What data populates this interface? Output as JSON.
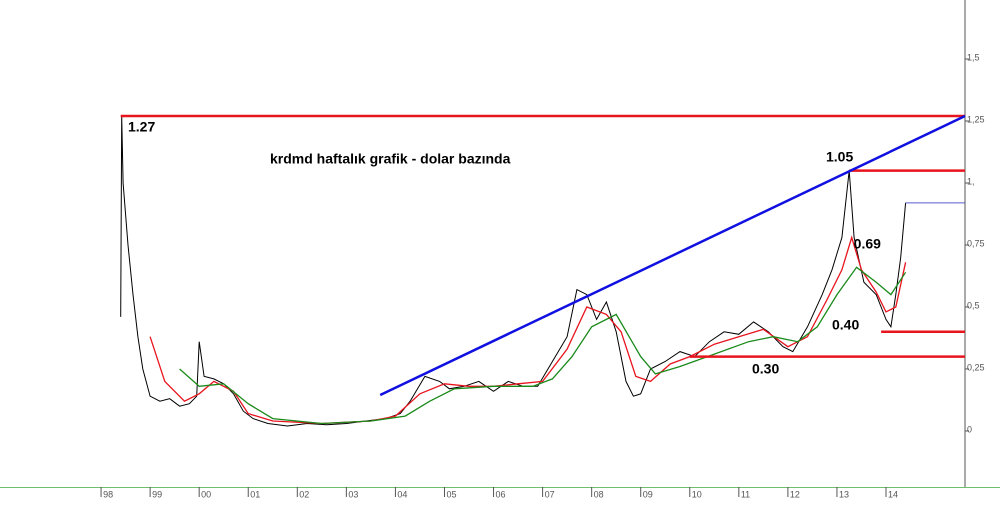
{
  "chart_data": {
    "type": "line",
    "title": "krdmd haftalık grafik  - dolar bazında",
    "xlim": [
      95.94,
      115.61
    ],
    "ylim": [
      -0.226,
      1.738
    ],
    "xticks": [
      98,
      99,
      {
        "value": 100,
        "label": "00"
      },
      {
        "value": 101,
        "label": "01"
      },
      {
        "value": 102,
        "label": "02"
      },
      {
        "value": 103,
        "label": "03"
      },
      {
        "value": 104,
        "label": "04"
      },
      {
        "value": 105,
        "label": "05"
      },
      {
        "value": 106,
        "label": "06"
      },
      {
        "value": 107,
        "label": "07"
      },
      {
        "value": 108,
        "label": "08"
      },
      {
        "value": 109,
        "label": "09"
      },
      {
        "value": 110,
        "label": "10"
      },
      {
        "value": 111,
        "label": "11"
      },
      {
        "value": 112,
        "label": "12"
      },
      {
        "value": 113,
        "label": "13"
      },
      {
        "value": 114,
        "label": "14"
      }
    ],
    "yticks": [
      0,
      {
        "value": 0.25,
        "label": "0,25"
      },
      {
        "value": 0.5,
        "label": "0,5"
      },
      {
        "value": 0.75,
        "label": "0,75"
      },
      {
        "value": 1,
        "label": "1,"
      },
      {
        "value": 1.25,
        "label": "1,25"
      },
      {
        "value": 1.5,
        "label": "1,5"
      }
    ],
    "series": [
      {
        "color": "#000000",
        "x": [
          98.4,
          98.42,
          98.45,
          98.55,
          98.65,
          98.75,
          98.85,
          99.0,
          99.2,
          99.4,
          99.6,
          99.8,
          99.95,
          100.0,
          100.1,
          100.3,
          100.5,
          100.7,
          100.9,
          101.1,
          101.4,
          101.8,
          102.2,
          102.6,
          103.0,
          103.4,
          103.8,
          104.1,
          104.3,
          104.6,
          104.9,
          105.1,
          105.4,
          105.7,
          106.0,
          106.3,
          106.6,
          106.9,
          107.2,
          107.5,
          107.7,
          107.9,
          108.1,
          108.3,
          108.5,
          108.7,
          108.85,
          109.0,
          109.2,
          109.5,
          109.8,
          110.1,
          110.4,
          110.7,
          111.0,
          111.3,
          111.6,
          111.9,
          112.1,
          112.4,
          112.7,
          112.9,
          113.1,
          113.25,
          113.35,
          113.55,
          113.8,
          114.0,
          114.1,
          114.2,
          114.3,
          114.4
        ],
        "values": [
          0.46,
          1.27,
          1.0,
          0.75,
          0.55,
          0.38,
          0.25,
          0.14,
          0.12,
          0.13,
          0.1,
          0.11,
          0.14,
          0.36,
          0.22,
          0.21,
          0.19,
          0.15,
          0.08,
          0.05,
          0.03,
          0.02,
          0.03,
          0.025,
          0.03,
          0.04,
          0.05,
          0.07,
          0.12,
          0.22,
          0.2,
          0.17,
          0.18,
          0.2,
          0.16,
          0.2,
          0.18,
          0.18,
          0.28,
          0.38,
          0.57,
          0.55,
          0.45,
          0.52,
          0.4,
          0.2,
          0.14,
          0.15,
          0.25,
          0.28,
          0.32,
          0.3,
          0.36,
          0.4,
          0.39,
          0.44,
          0.4,
          0.34,
          0.32,
          0.42,
          0.55,
          0.65,
          0.78,
          1.05,
          0.78,
          0.6,
          0.55,
          0.45,
          0.42,
          0.55,
          0.7,
          0.92
        ]
      },
      {
        "color": "#e8141e",
        "x": [
          99.0,
          99.3,
          99.7,
          100.0,
          100.3,
          100.7,
          101.0,
          101.5,
          102.5,
          103.5,
          104.0,
          104.5,
          105.0,
          105.5,
          106.0,
          106.5,
          107.0,
          107.5,
          107.9,
          108.3,
          108.6,
          108.9,
          109.2,
          109.6,
          110.0,
          110.5,
          111.0,
          111.5,
          112.0,
          112.4,
          112.8,
          113.1,
          113.3,
          113.5,
          113.8,
          114.0,
          114.2,
          114.4
        ],
        "values": [
          0.38,
          0.2,
          0.12,
          0.15,
          0.2,
          0.16,
          0.07,
          0.04,
          0.03,
          0.04,
          0.06,
          0.15,
          0.19,
          0.18,
          0.18,
          0.19,
          0.2,
          0.33,
          0.5,
          0.47,
          0.4,
          0.22,
          0.2,
          0.27,
          0.3,
          0.35,
          0.38,
          0.41,
          0.34,
          0.38,
          0.53,
          0.65,
          0.78,
          0.65,
          0.56,
          0.48,
          0.5,
          0.68
        ]
      },
      {
        "color": "#1a8a1a",
        "x": [
          99.6,
          100.0,
          100.5,
          101.0,
          101.5,
          102.5,
          103.5,
          104.2,
          104.7,
          105.2,
          106.0,
          106.8,
          107.2,
          107.6,
          108.0,
          108.5,
          109.0,
          109.3,
          109.8,
          110.5,
          111.2,
          111.7,
          112.2,
          112.6,
          113.0,
          113.4,
          113.8,
          114.1,
          114.4
        ],
        "values": [
          0.25,
          0.18,
          0.19,
          0.11,
          0.05,
          0.03,
          0.04,
          0.06,
          0.12,
          0.17,
          0.18,
          0.18,
          0.21,
          0.3,
          0.42,
          0.47,
          0.3,
          0.23,
          0.26,
          0.31,
          0.36,
          0.38,
          0.36,
          0.42,
          0.55,
          0.66,
          0.6,
          0.55,
          0.64
        ]
      }
    ],
    "levels": [
      {
        "value": 1.27,
        "label": "1.27",
        "from": 98.4
      },
      {
        "value": 1.05,
        "label": "1.05",
        "from": 113.25
      },
      {
        "value": 0.4,
        "label": "0.40",
        "from": 113.9
      },
      {
        "value": 0.3,
        "label": "0.30",
        "from": 110.0
      }
    ],
    "annotations": [
      {
        "text": "0.69",
        "x": 113.3,
        "y": 0.75
      }
    ],
    "trendline": {
      "color": "#1010e0",
      "x": [
        103.69,
        115.61
      ],
      "y": [
        0.145,
        1.27
      ]
    },
    "last_price_line": {
      "color": "#5a5ad0",
      "value": 0.92,
      "from": 114.4
    }
  }
}
